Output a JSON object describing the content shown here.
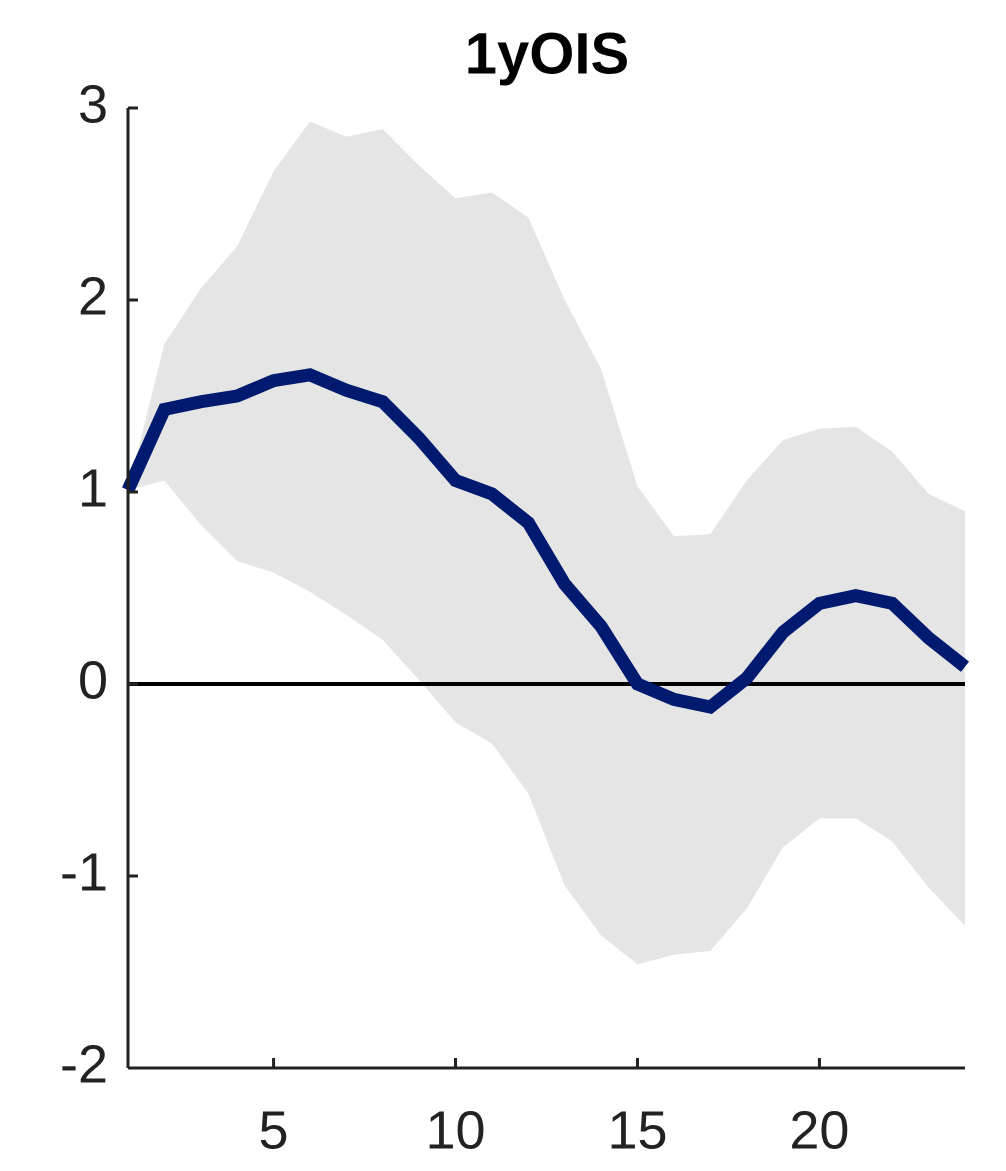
{
  "chart_data": {
    "type": "line",
    "title": "1yOIS",
    "x": [
      1,
      2,
      3,
      4,
      5,
      6,
      7,
      8,
      9,
      10,
      11,
      12,
      13,
      14,
      15,
      16,
      17,
      18,
      19,
      20,
      21,
      22,
      23,
      24
    ],
    "series": [
      {
        "color": "#001a70",
        "values": [
          1.01,
          1.43,
          1.47,
          1.5,
          1.58,
          1.61,
          1.53,
          1.47,
          1.28,
          1.06,
          0.99,
          0.84,
          0.52,
          0.3,
          0.0,
          -0.08,
          -0.12,
          0.03,
          0.27,
          0.42,
          0.46,
          0.42,
          0.24,
          0.09
        ]
      }
    ],
    "band": {
      "color": "#e5e5e5",
      "upper": [
        1.01,
        1.77,
        2.06,
        2.28,
        2.67,
        2.93,
        2.85,
        2.89,
        2.7,
        2.53,
        2.56,
        2.43,
        2.0,
        1.64,
        1.03,
        0.77,
        0.78,
        1.06,
        1.27,
        1.33,
        1.34,
        1.21,
        0.99,
        0.9
      ],
      "lower": [
        1.01,
        1.06,
        0.83,
        0.64,
        0.58,
        0.48,
        0.36,
        0.23,
        0.02,
        -0.2,
        -0.31,
        -0.57,
        -1.05,
        -1.31,
        -1.46,
        -1.41,
        -1.39,
        -1.17,
        -0.85,
        -0.7,
        -0.7,
        -0.82,
        -1.06,
        -1.26
      ]
    },
    "reference_line": 0,
    "xlim": [
      1,
      24
    ],
    "xticks": [
      5,
      10,
      15,
      20
    ],
    "ylim": [
      -2,
      3
    ],
    "yticks": [
      -2,
      -1,
      0,
      1,
      2,
      3
    ]
  }
}
